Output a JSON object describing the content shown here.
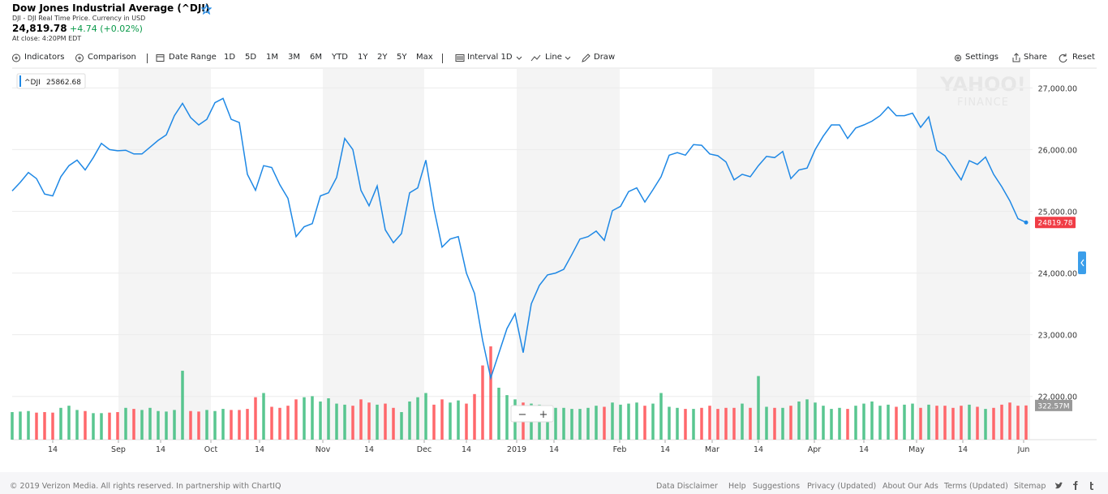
{
  "header": {
    "title": "Dow Jones Industrial Average (^DJI)",
    "subtitle": "DJI - DJI Real Time Price. Currency in USD",
    "price": "24,819.78",
    "change": "+4.74 (+0.02%)",
    "close_note": "At close: 4:20PM EDT"
  },
  "toolbar": [
    "Indicators",
    "Comparison",
    "Date Range",
    "1D",
    "5D",
    "1M",
    "3M",
    "6M",
    "YTD",
    "1Y",
    "2Y",
    "5Y",
    "Max",
    "Interval 1D",
    "Line",
    "Draw",
    "Settings",
    "Share",
    "Reset"
  ],
  "chart_data": {
    "type": "line",
    "watermark": [
      "YAHOO!",
      "FINANCE"
    ],
    "crosshair_value": 25862.68,
    "series": [
      {
        "name": "^DJI",
        "color": "#1e88e5",
        "values": [
          25330,
          25470,
          25630,
          25530,
          25280,
          25250,
          25560,
          25740,
          25830,
          25670,
          25870,
          26100,
          26000,
          25980,
          25990,
          25930,
          25930,
          26040,
          26150,
          26240,
          26550,
          26750,
          26520,
          26400,
          26490,
          26760,
          26830,
          26490,
          26440,
          25600,
          25340,
          25740,
          25710,
          25430,
          25210,
          24590,
          24750,
          24800,
          25250,
          25300,
          25550,
          26180,
          26000,
          25340,
          25090,
          25410,
          24700,
          24490,
          24640,
          25300,
          25380,
          25830,
          25040,
          24420,
          24550,
          24590,
          24000,
          23670,
          22910,
          22300,
          22700,
          23100,
          23340,
          22710,
          23500,
          23800,
          23970,
          24000,
          24060,
          24300,
          24550,
          24590,
          24680,
          24530,
          25010,
          25080,
          25320,
          25380,
          25150,
          25350,
          25560,
          25910,
          25950,
          25910,
          26080,
          26070,
          25930,
          25900,
          25800,
          25510,
          25600,
          25560,
          25740,
          25890,
          25870,
          25970,
          25530,
          25670,
          25700,
          26000,
          26220,
          26400,
          26400,
          26180,
          26350,
          26400,
          26460,
          26550,
          26690,
          26550,
          26550,
          26590,
          26360,
          26530,
          25990,
          25900,
          25700,
          25510,
          25820,
          25760,
          25880,
          25600,
          25400,
          25170,
          24880,
          24819.78
        ]
      }
    ],
    "volume": {
      "values": [
        260,
        265,
        270,
        255,
        260,
        255,
        300,
        320,
        280,
        270,
        250,
        250,
        255,
        260,
        300,
        290,
        280,
        300,
        270,
        265,
        280,
        650,
        270,
        265,
        280,
        270,
        290,
        280,
        280,
        290,
        400,
        440,
        310,
        300,
        320,
        380,
        400,
        410,
        360,
        390,
        340,
        330,
        320,
        380,
        350,
        330,
        340,
        300,
        260,
        360,
        400,
        440,
        330,
        380,
        350,
        370,
        340,
        430,
        700,
        880,
        490,
        420,
        380,
        350,
        340,
        330,
        320,
        300,
        300,
        290,
        290,
        300,
        320,
        310,
        350,
        330,
        340,
        350,
        320,
        340,
        440,
        310,
        300,
        290,
        290,
        300,
        320,
        290,
        300,
        300,
        340,
        300,
        600,
        310,
        300,
        300,
        320,
        360,
        380,
        350,
        320,
        290,
        300,
        290,
        320,
        340,
        360,
        320,
        330,
        310,
        330,
        340,
        300,
        330,
        320,
        320,
        300,
        320,
        330,
        310,
        290,
        300,
        330,
        350,
        320,
        322.57
      ],
      "last_label": "322.57M",
      "ylim": [
        0,
        880
      ],
      "up_color": "#3cbc7c",
      "down_color": "#ff4d52"
    },
    "xlim": [
      0,
      125
    ],
    "xticks": [
      {
        "value": 5,
        "label": "14"
      },
      {
        "value": 13.1,
        "label": "Sep"
      },
      {
        "value": 18.3,
        "label": "14"
      },
      {
        "value": 24.5,
        "label": "Oct"
      },
      {
        "value": 30.5,
        "label": "14"
      },
      {
        "value": 38.3,
        "label": "Nov"
      },
      {
        "value": 44,
        "label": "14"
      },
      {
        "value": 50.8,
        "label": "Dec"
      },
      {
        "value": 56,
        "label": "14"
      },
      {
        "value": 62.2,
        "label": "2019"
      },
      {
        "value": 66.8,
        "label": "14"
      },
      {
        "value": 74.9,
        "label": "Feb"
      },
      {
        "value": 80.5,
        "label": "14"
      },
      {
        "value": 86.3,
        "label": "Mar"
      },
      {
        "value": 92,
        "label": "14"
      },
      {
        "value": 98.9,
        "label": "Apr"
      },
      {
        "value": 105,
        "label": "14"
      },
      {
        "value": 111.5,
        "label": "May"
      },
      {
        "value": 117.2,
        "label": "14"
      },
      {
        "value": 124.7,
        "label": "Jun"
      }
    ],
    "shaded_months": [
      [
        13.1,
        24.5
      ],
      [
        38.3,
        50.8
      ],
      [
        62.2,
        74.9
      ],
      [
        86.3,
        98.9
      ],
      [
        111.5,
        124.7
      ]
    ],
    "ylim": [
      21300,
      27320
    ],
    "yticks": [
      {
        "value": 22000,
        "label": "22,000.00"
      },
      {
        "value": 23000,
        "label": "23,000.00"
      },
      {
        "value": 24000,
        "label": "24,000.00"
      },
      {
        "value": 25000,
        "label": "25,000.00"
      },
      {
        "value": 26000,
        "label": "26,000.00"
      },
      {
        "value": 27000,
        "label": "27,000.00"
      }
    ],
    "grid": true,
    "zoom_buttons": [
      "−",
      "+"
    ]
  },
  "footer": {
    "copyright": "© 2019 Verizon Media. All rights reserved. In partnership with ChartIQ",
    "links": [
      "Data Disclaimer",
      "Help",
      "Suggestions",
      "Privacy (Updated)",
      "About Our Ads",
      "Terms (Updated)",
      "Sitemap"
    ]
  }
}
